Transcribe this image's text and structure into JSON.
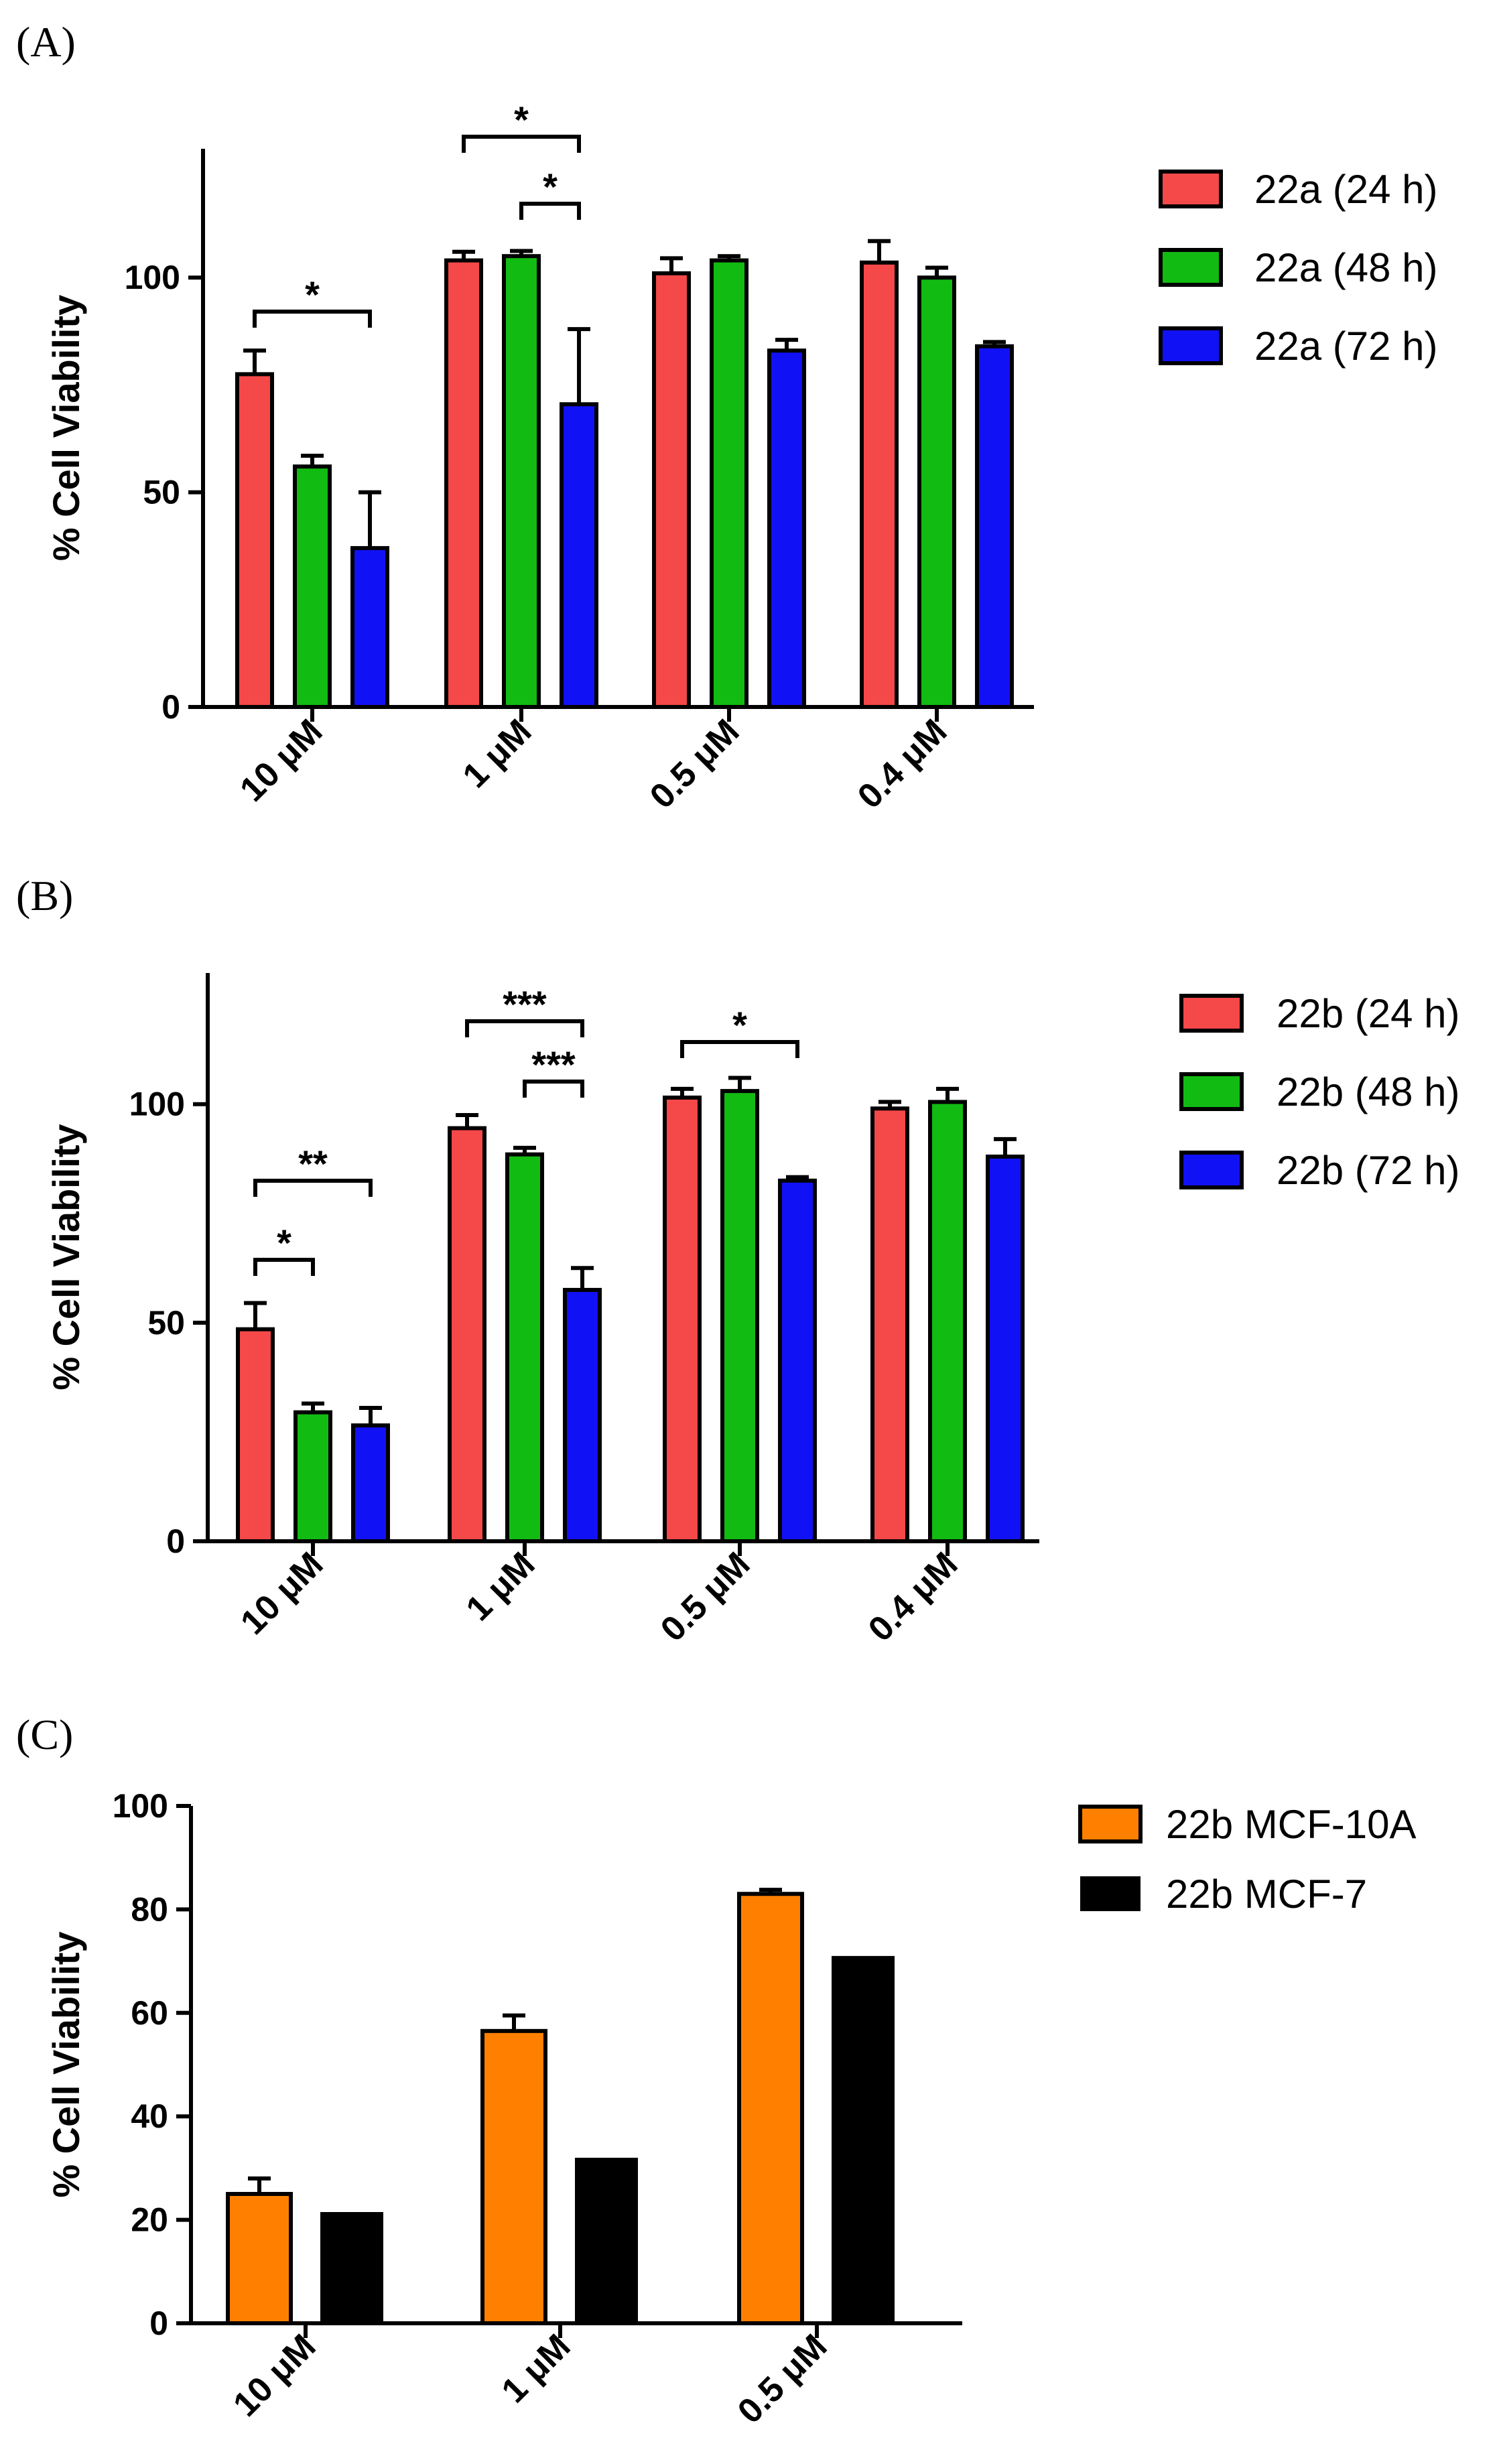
{
  "figure": {
    "panel_letters": [
      "(A)",
      "(B)",
      "(C)"
    ]
  },
  "chart_data": [
    {
      "type": "bar",
      "panel": "(A)",
      "title": "",
      "xlabel": "",
      "ylabel": "% Cell Viability",
      "ylim": [
        0,
        130
      ],
      "yticks": [
        0,
        50,
        100
      ],
      "ytick_labels": [
        "0",
        "50",
        "100"
      ],
      "categories": [
        "10 μM",
        "1 μM",
        "0.5 μM",
        "0.4 μM"
      ],
      "series": [
        {
          "name": "22a (24 h)",
          "color": "#f54848",
          "values": [
            77.5,
            104,
            101,
            103.5
          ],
          "errors": [
            5.5,
            2,
            3.5,
            5
          ]
        },
        {
          "name": "22a (48 h)",
          "color": "#12bb12",
          "values": [
            56,
            105,
            104,
            100
          ],
          "errors": [
            2.5,
            1.2,
            1,
            2.3
          ]
        },
        {
          "name": "22a (72 h)",
          "color": "#1111f5",
          "values": [
            37,
            70.5,
            83,
            84
          ],
          "errors": [
            13,
            17.5,
            2.5,
            1
          ]
        }
      ],
      "significance": [
        {
          "cat": 0,
          "from": 0,
          "to": 2,
          "level": 0,
          "label": "*"
        },
        {
          "cat": 1,
          "from": 0,
          "to": 2,
          "level": 1,
          "label": "*"
        },
        {
          "cat": 1,
          "from": 1,
          "to": 2,
          "level": 0,
          "label": "*"
        }
      ]
    },
    {
      "type": "bar",
      "panel": "(B)",
      "title": "",
      "xlabel": "",
      "ylabel": "% Cell Viability",
      "ylim": [
        0,
        130
      ],
      "yticks": [
        0,
        50,
        100
      ],
      "ytick_labels": [
        "0",
        "50",
        "100"
      ],
      "categories": [
        "10 μM",
        "1 μM",
        "0.5 μM",
        "0.4 μM"
      ],
      "series": [
        {
          "name": "22b (24 h)",
          "color": "#f54848",
          "values": [
            48.5,
            94.5,
            101.5,
            99
          ],
          "errors": [
            6,
            3,
            2,
            1.5
          ]
        },
        {
          "name": "22b (48 h)",
          "color": "#12bb12",
          "values": [
            29.5,
            88.5,
            103,
            100.5
          ],
          "errors": [
            2,
            1.5,
            3,
            3
          ]
        },
        {
          "name": "22b (72 h)",
          "color": "#1111f5",
          "values": [
            26.5,
            57.5,
            82.5,
            88
          ],
          "errors": [
            4,
            5,
            0.8,
            4
          ]
        }
      ],
      "significance": [
        {
          "cat": 0,
          "from": 0,
          "to": 2,
          "level": 1,
          "label": "**"
        },
        {
          "cat": 0,
          "from": 0,
          "to": 1,
          "level": 0,
          "label": "*"
        },
        {
          "cat": 1,
          "from": 0,
          "to": 2,
          "level": 1,
          "label": "***"
        },
        {
          "cat": 1,
          "from": 1,
          "to": 2,
          "level": 0,
          "label": "***"
        },
        {
          "cat": 2,
          "from": 0,
          "to": 2,
          "level": 0,
          "label": "*"
        }
      ]
    },
    {
      "type": "bar",
      "panel": "(C)",
      "title": "",
      "xlabel": "",
      "ylabel": "% Cell Viability",
      "ylim": [
        0,
        100
      ],
      "yticks": [
        0,
        20,
        40,
        60,
        80,
        100
      ],
      "ytick_labels": [
        "0",
        "20",
        "40",
        "60",
        "80",
        "100"
      ],
      "categories": [
        "10 μM",
        "1 μM",
        "0.5 μM"
      ],
      "series": [
        {
          "name": "22b  MCF-10A",
          "color": "#ff8000",
          "values": [
            25,
            56.5,
            83
          ],
          "errors": [
            3,
            3,
            0.8
          ]
        },
        {
          "name": "22b  MCF-7",
          "color": "#000000",
          "values": [
            21.5,
            32,
            71
          ],
          "errors": [
            0,
            0,
            0
          ]
        }
      ],
      "significance": []
    }
  ]
}
